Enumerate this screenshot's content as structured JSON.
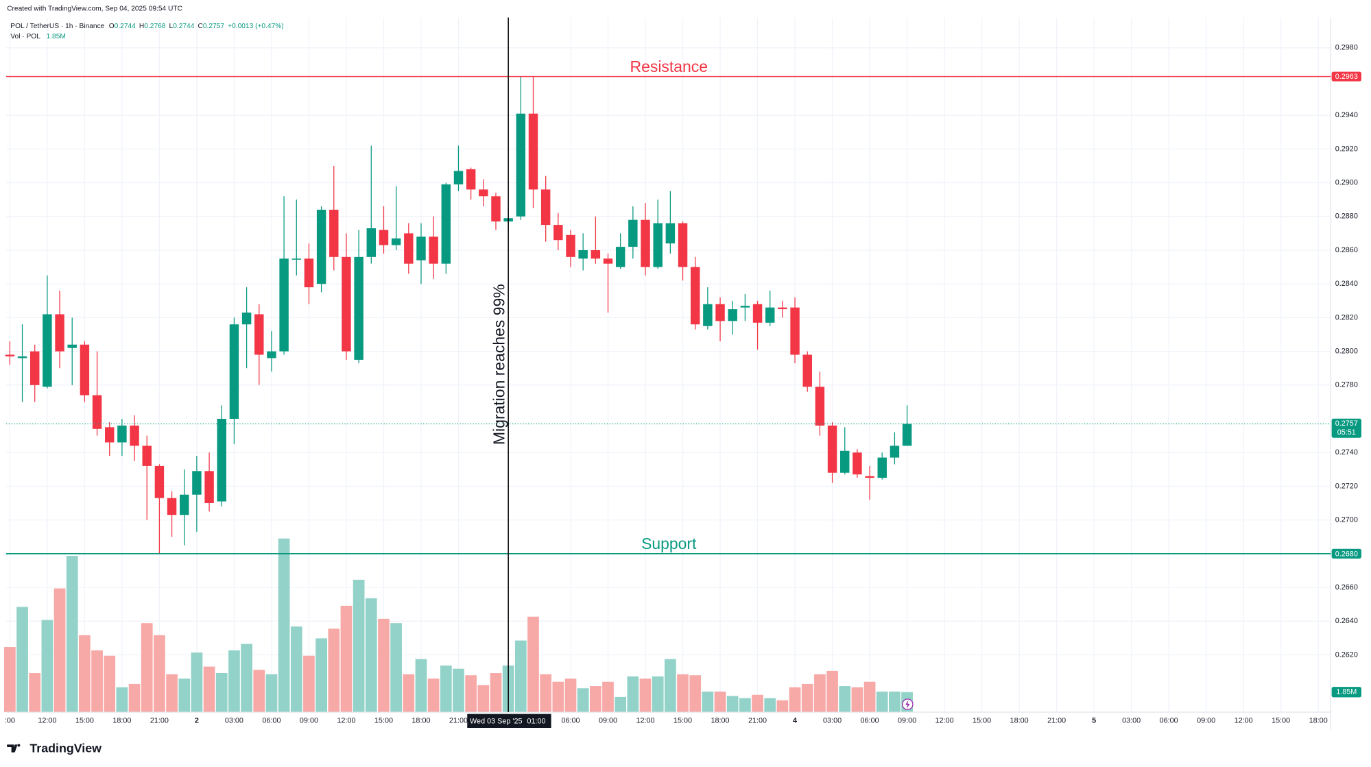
{
  "header": {
    "created": "Created with TradingView.com, Sep 04, 2025 09:54 UTC",
    "vol_title": "Vol · POL",
    "vol_value": "1.85M",
    "ohlc": [
      {
        "key": "O",
        "value": "0.2744"
      },
      {
        "key": "H",
        "value": "0.2768"
      },
      {
        "key": "L",
        "value": "0.2744"
      },
      {
        "key": "C",
        "value": "0.2757"
      }
    ],
    "change": "+0.0013 (+0.47%)"
  },
  "footer": {
    "brand": "TradingView"
  },
  "chart_data": {
    "type": "candlestick",
    "title": "POL / TetherUS · 1h · Binance",
    "up_color": "#089981",
    "down_color": "#f23645",
    "volume_up_color": "#92d2c8",
    "volume_down_color": "#f7a9a7",
    "grid": true,
    "x": [
      0,
      1,
      2,
      3,
      4,
      5,
      6,
      7,
      8,
      9,
      10,
      11,
      12,
      13,
      14,
      15,
      16,
      17,
      18,
      19,
      20,
      21,
      22,
      23,
      24,
      25,
      26,
      27,
      28,
      29,
      30,
      31,
      32,
      33,
      34,
      35,
      36,
      37,
      38,
      39,
      40,
      41,
      42,
      43,
      44,
      45,
      46,
      47,
      48,
      49,
      50,
      51,
      52,
      53,
      54,
      55,
      56,
      57,
      58,
      59,
      60,
      61,
      62,
      63,
      64,
      65,
      66,
      67,
      68,
      69,
      70,
      71,
      72
    ],
    "open": [
      0.2798,
      0.2796,
      0.28,
      0.2779,
      0.2822,
      0.2802,
      0.2804,
      0.2774,
      0.2755,
      0.2746,
      0.2756,
      0.2744,
      0.2732,
      0.2713,
      0.2703,
      0.2715,
      0.2729,
      0.2711,
      0.276,
      0.2816,
      0.2822,
      0.2796,
      0.28,
      0.2855,
      0.2855,
      0.284,
      0.2884,
      0.2856,
      0.2795,
      0.2856,
      0.2872,
      0.2863,
      0.287,
      0.2854,
      0.2868,
      0.2852,
      0.2899,
      0.2908,
      0.2896,
      0.2892,
      0.2877,
      0.288,
      0.2941,
      0.2896,
      0.2875,
      0.2869,
      0.2855,
      0.286,
      0.2855,
      0.285,
      0.2862,
      0.2878,
      0.285,
      0.2864,
      0.2876,
      0.285,
      0.2815,
      0.2828,
      0.2818,
      0.2826,
      0.2828,
      0.2817,
      0.2826,
      0.2826,
      0.2798,
      0.2779,
      0.2756,
      0.2728,
      0.274,
      0.2726,
      0.2725,
      0.2737,
      0.2744
    ],
    "high": [
      0.2806,
      0.2816,
      0.2804,
      0.2845,
      0.2836,
      0.282,
      0.2806,
      0.28,
      0.2758,
      0.276,
      0.2762,
      0.275,
      0.2733,
      0.2717,
      0.273,
      0.2738,
      0.274,
      0.2768,
      0.282,
      0.2838,
      0.2828,
      0.2812,
      0.2892,
      0.289,
      0.2864,
      0.2886,
      0.291,
      0.287,
      0.2872,
      0.2922,
      0.2886,
      0.2898,
      0.2876,
      0.2876,
      0.288,
      0.29,
      0.2922,
      0.2909,
      0.2902,
      0.2894,
      0.2885,
      0.2963,
      0.2963,
      0.2904,
      0.2882,
      0.2872,
      0.287,
      0.288,
      0.2858,
      0.287,
      0.2886,
      0.2888,
      0.289,
      0.2895,
      0.2877,
      0.2856,
      0.2838,
      0.2832,
      0.283,
      0.2834,
      0.283,
      0.2836,
      0.283,
      0.2832,
      0.28,
      0.2788,
      0.2758,
      0.2755,
      0.2742,
      0.2732,
      0.274,
      0.2752,
      0.2768
    ],
    "low": [
      0.2792,
      0.277,
      0.277,
      0.2778,
      0.279,
      0.278,
      0.277,
      0.275,
      0.2738,
      0.2738,
      0.2735,
      0.27,
      0.268,
      0.269,
      0.2685,
      0.2693,
      0.2705,
      0.2708,
      0.2745,
      0.279,
      0.278,
      0.2788,
      0.2798,
      0.2845,
      0.2828,
      0.2835,
      0.2848,
      0.2795,
      0.2793,
      0.2852,
      0.2858,
      0.286,
      0.2846,
      0.284,
      0.2843,
      0.2846,
      0.2895,
      0.289,
      0.2886,
      0.2872,
      0.287,
      0.2878,
      0.2885,
      0.2865,
      0.286,
      0.285,
      0.2848,
      0.2852,
      0.2823,
      0.2849,
      0.2855,
      0.2845,
      0.2849,
      0.2858,
      0.2842,
      0.2813,
      0.2813,
      0.2806,
      0.281,
      0.2818,
      0.2801,
      0.2815,
      0.282,
      0.2793,
      0.2776,
      0.275,
      0.2722,
      0.2727,
      0.2725,
      0.2712,
      0.2724,
      0.2733,
      0.2744
    ],
    "close": [
      0.2797,
      0.2797,
      0.278,
      0.2822,
      0.28,
      0.2804,
      0.2774,
      0.2754,
      0.2746,
      0.2756,
      0.2744,
      0.2732,
      0.2713,
      0.2703,
      0.2715,
      0.2729,
      0.271,
      0.276,
      0.2816,
      0.2823,
      0.2798,
      0.28,
      0.2855,
      0.2855,
      0.2838,
      0.2884,
      0.2856,
      0.28,
      0.2856,
      0.2873,
      0.2863,
      0.2867,
      0.2852,
      0.2868,
      0.2852,
      0.2899,
      0.2907,
      0.2896,
      0.2892,
      0.2877,
      0.2879,
      0.2941,
      0.2896,
      0.2875,
      0.2866,
      0.2856,
      0.286,
      0.2855,
      0.2852,
      0.2862,
      0.2878,
      0.285,
      0.2876,
      0.2876,
      0.285,
      0.2816,
      0.2828,
      0.2818,
      0.2825,
      0.2827,
      0.2817,
      0.2826,
      0.2825,
      0.2798,
      0.2779,
      0.2756,
      0.2728,
      0.2741,
      0.2727,
      0.2725,
      0.2737,
      0.2744,
      0.2757
    ],
    "volume": [
      6.0,
      9.7,
      3.6,
      8.5,
      11.4,
      14.4,
      7.1,
      5.7,
      5.2,
      2.3,
      2.6,
      8.2,
      7.1,
      3.5,
      3.1,
      5.5,
      4.2,
      3.6,
      5.7,
      6.3,
      3.9,
      3.5,
      16.0,
      7.9,
      5.2,
      6.8,
      7.7,
      9.8,
      12.2,
      10.5,
      8.6,
      8.2,
      3.5,
      4.9,
      3.1,
      4.3,
      4.0,
      3.4,
      2.5,
      3.6,
      4.3,
      6.6,
      8.8,
      3.5,
      2.8,
      3.1,
      2.2,
      2.4,
      2.8,
      1.4,
      3.3,
      3.1,
      3.3,
      4.9,
      3.5,
      3.4,
      1.9,
      1.9,
      1.5,
      1.3,
      1.6,
      1.3,
      1.1,
      2.3,
      2.6,
      3.5,
      3.8,
      2.4,
      2.3,
      2.8,
      1.9,
      1.9,
      1.85
    ],
    "volume_ylim": [
      0,
      64
    ],
    "xlim": [
      -0.3,
      106
    ],
    "xticks": [
      {
        "value": 0,
        "label": ":00"
      },
      {
        "value": 3,
        "label": "12:00"
      },
      {
        "value": 6,
        "label": "15:00"
      },
      {
        "value": 9,
        "label": "18:00"
      },
      {
        "value": 12,
        "label": "21:00"
      },
      {
        "value": 15,
        "label": "2"
      },
      {
        "value": 18,
        "label": "03:00"
      },
      {
        "value": 21,
        "label": "06:00"
      },
      {
        "value": 24,
        "label": "09:00"
      },
      {
        "value": 27,
        "label": "12:00"
      },
      {
        "value": 30,
        "label": "15:00"
      },
      {
        "value": 33,
        "label": "18:00"
      },
      {
        "value": 36,
        "label": "21:00"
      },
      {
        "value": 45,
        "label": "06:00"
      },
      {
        "value": 48,
        "label": "09:00"
      },
      {
        "value": 51,
        "label": "12:00"
      },
      {
        "value": 54,
        "label": "15:00"
      },
      {
        "value": 57,
        "label": "18:00"
      },
      {
        "value": 60,
        "label": "21:00"
      },
      {
        "value": 63,
        "label": "4"
      },
      {
        "value": 66,
        "label": "03:00"
      },
      {
        "value": 69,
        "label": "06:00"
      },
      {
        "value": 72,
        "label": "09:00"
      },
      {
        "value": 75,
        "label": "12:00"
      },
      {
        "value": 78,
        "label": "15:00"
      },
      {
        "value": 81,
        "label": "18:00"
      },
      {
        "value": 84,
        "label": "21:00"
      },
      {
        "value": 87,
        "label": "5"
      },
      {
        "value": 90,
        "label": "03:00"
      },
      {
        "value": 93,
        "label": "06:00"
      },
      {
        "value": 96,
        "label": "09:00"
      },
      {
        "value": 99,
        "label": "12:00"
      },
      {
        "value": 102,
        "label": "15:00"
      },
      {
        "value": 105,
        "label": "18:00"
      }
    ],
    "ylim": [
      0.2586,
      0.2998
    ],
    "yticks": [
      {
        "value": 0.298,
        "label": "0.2980"
      },
      {
        "value": 0.294,
        "label": "0.2940"
      },
      {
        "value": 0.292,
        "label": "0.2920"
      },
      {
        "value": 0.29,
        "label": "0.2900"
      },
      {
        "value": 0.288,
        "label": "0.2880"
      },
      {
        "value": 0.286,
        "label": "0.2860"
      },
      {
        "value": 0.284,
        "label": "0.2840"
      },
      {
        "value": 0.282,
        "label": "0.2820"
      },
      {
        "value": 0.28,
        "label": "0.2800"
      },
      {
        "value": 0.278,
        "label": "0.2780"
      },
      {
        "value": 0.274,
        "label": "0.2740"
      },
      {
        "value": 0.272,
        "label": "0.2720"
      },
      {
        "value": 0.27,
        "label": "0.2700"
      },
      {
        "value": 0.266,
        "label": "0.2660"
      },
      {
        "value": 0.264,
        "label": "0.2640"
      },
      {
        "value": 0.262,
        "label": "0.2620"
      }
    ],
    "levels": [
      {
        "name": "Resistance",
        "value": 0.2963,
        "label": "0.2963",
        "color": "#f23645"
      },
      {
        "name": "Support",
        "value": 0.268,
        "label": "0.2680",
        "color": "#089981"
      }
    ],
    "last_price": {
      "label": "0.2757",
      "countdown": "05:51"
    },
    "annotation": {
      "text": "Migration reaches 99%",
      "x": 40
    },
    "crosshair": {
      "x": 40,
      "date_label": "Wed 03 Sep '25",
      "time_label": "01:00"
    }
  }
}
